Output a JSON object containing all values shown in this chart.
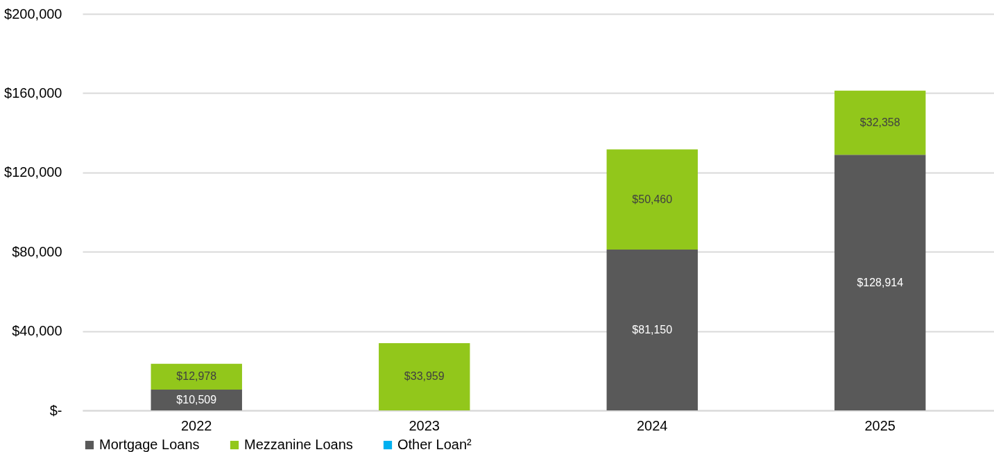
{
  "chart_data": {
    "type": "bar",
    "stacked": true,
    "categories": [
      "2022",
      "2023",
      "2024",
      "2025"
    ],
    "series": [
      {
        "name": "Mortgage Loans",
        "color": "#595959",
        "values": [
          10509,
          null,
          81150,
          128914
        ],
        "value_labels": [
          "$10,509",
          null,
          "$81,150",
          "$128,914"
        ]
      },
      {
        "name": "Mezzanine Loans",
        "color": "#92c71b",
        "values": [
          12978,
          33959,
          50460,
          32358
        ],
        "value_labels": [
          "$12,978",
          "$33,959",
          "$50,460",
          "$32,358"
        ]
      },
      {
        "name": "Other Loan²",
        "color": "#00b0f0",
        "values": [
          null,
          null,
          null,
          null
        ]
      }
    ],
    "ylim": [
      0,
      200000
    ],
    "yticks": [
      {
        "value": 0,
        "label": "$-"
      },
      {
        "value": 40000,
        "label": "$40,000"
      },
      {
        "value": 80000,
        "label": "$80,000"
      },
      {
        "value": 120000,
        "label": "$120,000"
      },
      {
        "value": 160000,
        "label": "$160,000"
      },
      {
        "value": 200000,
        "label": "$200,000"
      }
    ],
    "grid": "y",
    "legend": "bottom"
  }
}
